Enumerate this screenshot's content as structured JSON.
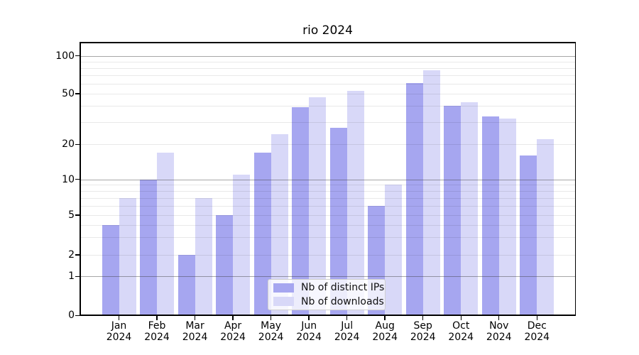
{
  "chart_data": {
    "type": "bar",
    "title": "rio 2024",
    "categories": [
      "Jan 2024",
      "Feb 2024",
      "Mar 2024",
      "Apr 2024",
      "May 2024",
      "Jun 2024",
      "Jul 2024",
      "Aug 2024",
      "Sep 2024",
      "Oct 2024",
      "Nov 2024",
      "Dec 2024"
    ],
    "series": [
      {
        "name": "Nb of distinct IPs",
        "color": "#a6a6f0",
        "values": [
          4,
          10,
          2,
          5,
          17,
          39,
          27,
          6,
          61,
          40,
          33,
          16
        ]
      },
      {
        "name": "Nb of downloads",
        "color": "#d8d8f8",
        "values": [
          7,
          17,
          7,
          11,
          24,
          47,
          53,
          9,
          77,
          43,
          32,
          22
        ]
      }
    ],
    "xlabel": "",
    "ylabel": "",
    "yscale": "pseudo-log",
    "yticks": [
      0,
      1,
      2,
      5,
      10,
      20,
      50,
      100
    ],
    "ylim": [
      0,
      128
    ],
    "grid": true,
    "grid_major_values": [
      1,
      10,
      100
    ],
    "grid_minor_values": [
      2,
      3,
      4,
      5,
      6,
      7,
      8,
      9,
      20,
      30,
      40,
      50,
      60,
      70,
      80,
      90
    ],
    "legend_position": "lower center",
    "axis_color": "#000000",
    "grid_major_color": "#b3b3b3",
    "grid_minor_color": "#e9e9e9"
  }
}
